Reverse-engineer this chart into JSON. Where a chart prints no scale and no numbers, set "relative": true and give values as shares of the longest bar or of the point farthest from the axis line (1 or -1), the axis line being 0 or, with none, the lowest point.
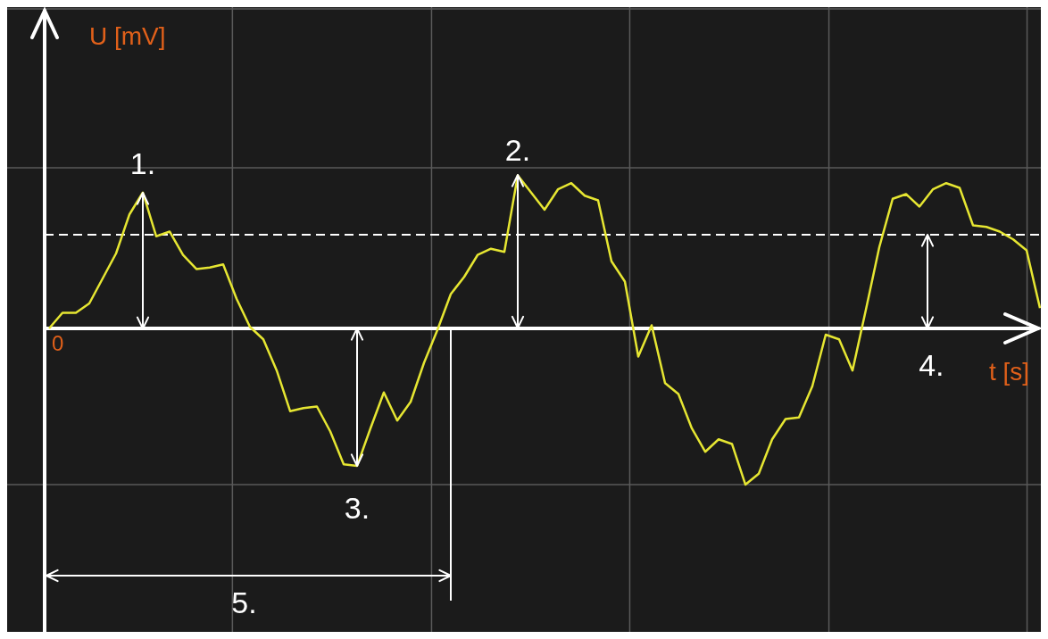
{
  "chart_data": {
    "type": "line",
    "relative": true,
    "xlabel": "t [s]",
    "categories": [
      null,
      null,
      null,
      null,
      null,
      null,
      null,
      null,
      null,
      null,
      null,
      null,
      null,
      null,
      null,
      null,
      null,
      null,
      null,
      null,
      null,
      null,
      null,
      null,
      null,
      null,
      null,
      null,
      null,
      null,
      null,
      null,
      null,
      null,
      null,
      null,
      null,
      null,
      null,
      null,
      null,
      null,
      null,
      null,
      null,
      null,
      null,
      null,
      null,
      null,
      null,
      null,
      null,
      null,
      null,
      null,
      null,
      null,
      null,
      null,
      null,
      null,
      null,
      null,
      null,
      null,
      null,
      null,
      null,
      null,
      null,
      null,
      null,
      null,
      null
    ],
    "series": [
      {
        "color": "#e6e632",
        "values": [
          0,
          0.1,
          0.1,
          0.16,
          0.32,
          0.48,
          0.73,
          0.87,
          0.59,
          0.62,
          0.47,
          0.38,
          0.39,
          0.41,
          0.19,
          0.01,
          -0.07,
          -0.27,
          -0.53,
          -0.51,
          -0.5,
          -0.66,
          -0.87,
          -0.88,
          -0.64,
          -0.41,
          -0.59,
          -0.47,
          -0.22,
          -0.01,
          0.22,
          0.33,
          0.47,
          0.51,
          0.49,
          0.98,
          0.87,
          0.76,
          0.89,
          0.93,
          0.85,
          0.82,
          0.43,
          0.3,
          -0.18,
          0.02,
          -0.35,
          -0.42,
          -0.64,
          -0.79,
          -0.71,
          -0.74,
          -1,
          -0.93,
          -0.71,
          -0.58,
          -0.57,
          -0.37,
          -0.04,
          -0.07,
          -0.27,
          0.12,
          0.52,
          0.83,
          0.86,
          0.78,
          0.89,
          0.93,
          0.9,
          0.66,
          0.65,
          0.62,
          0.57,
          0.5,
          0.13
        ]
      }
    ],
    "ref_lines": [
      {
        "axis": "y",
        "value": 0.6,
        "color": "#ffffff",
        "line_style": "dashed"
      }
    ],
    "annotations": [
      "U [mV]",
      "0",
      "1.",
      "2.",
      "3.",
      "4.",
      "5."
    ],
    "grid": true,
    "legend": false,
    "marker": "none",
    "line_style": "solid"
  }
}
